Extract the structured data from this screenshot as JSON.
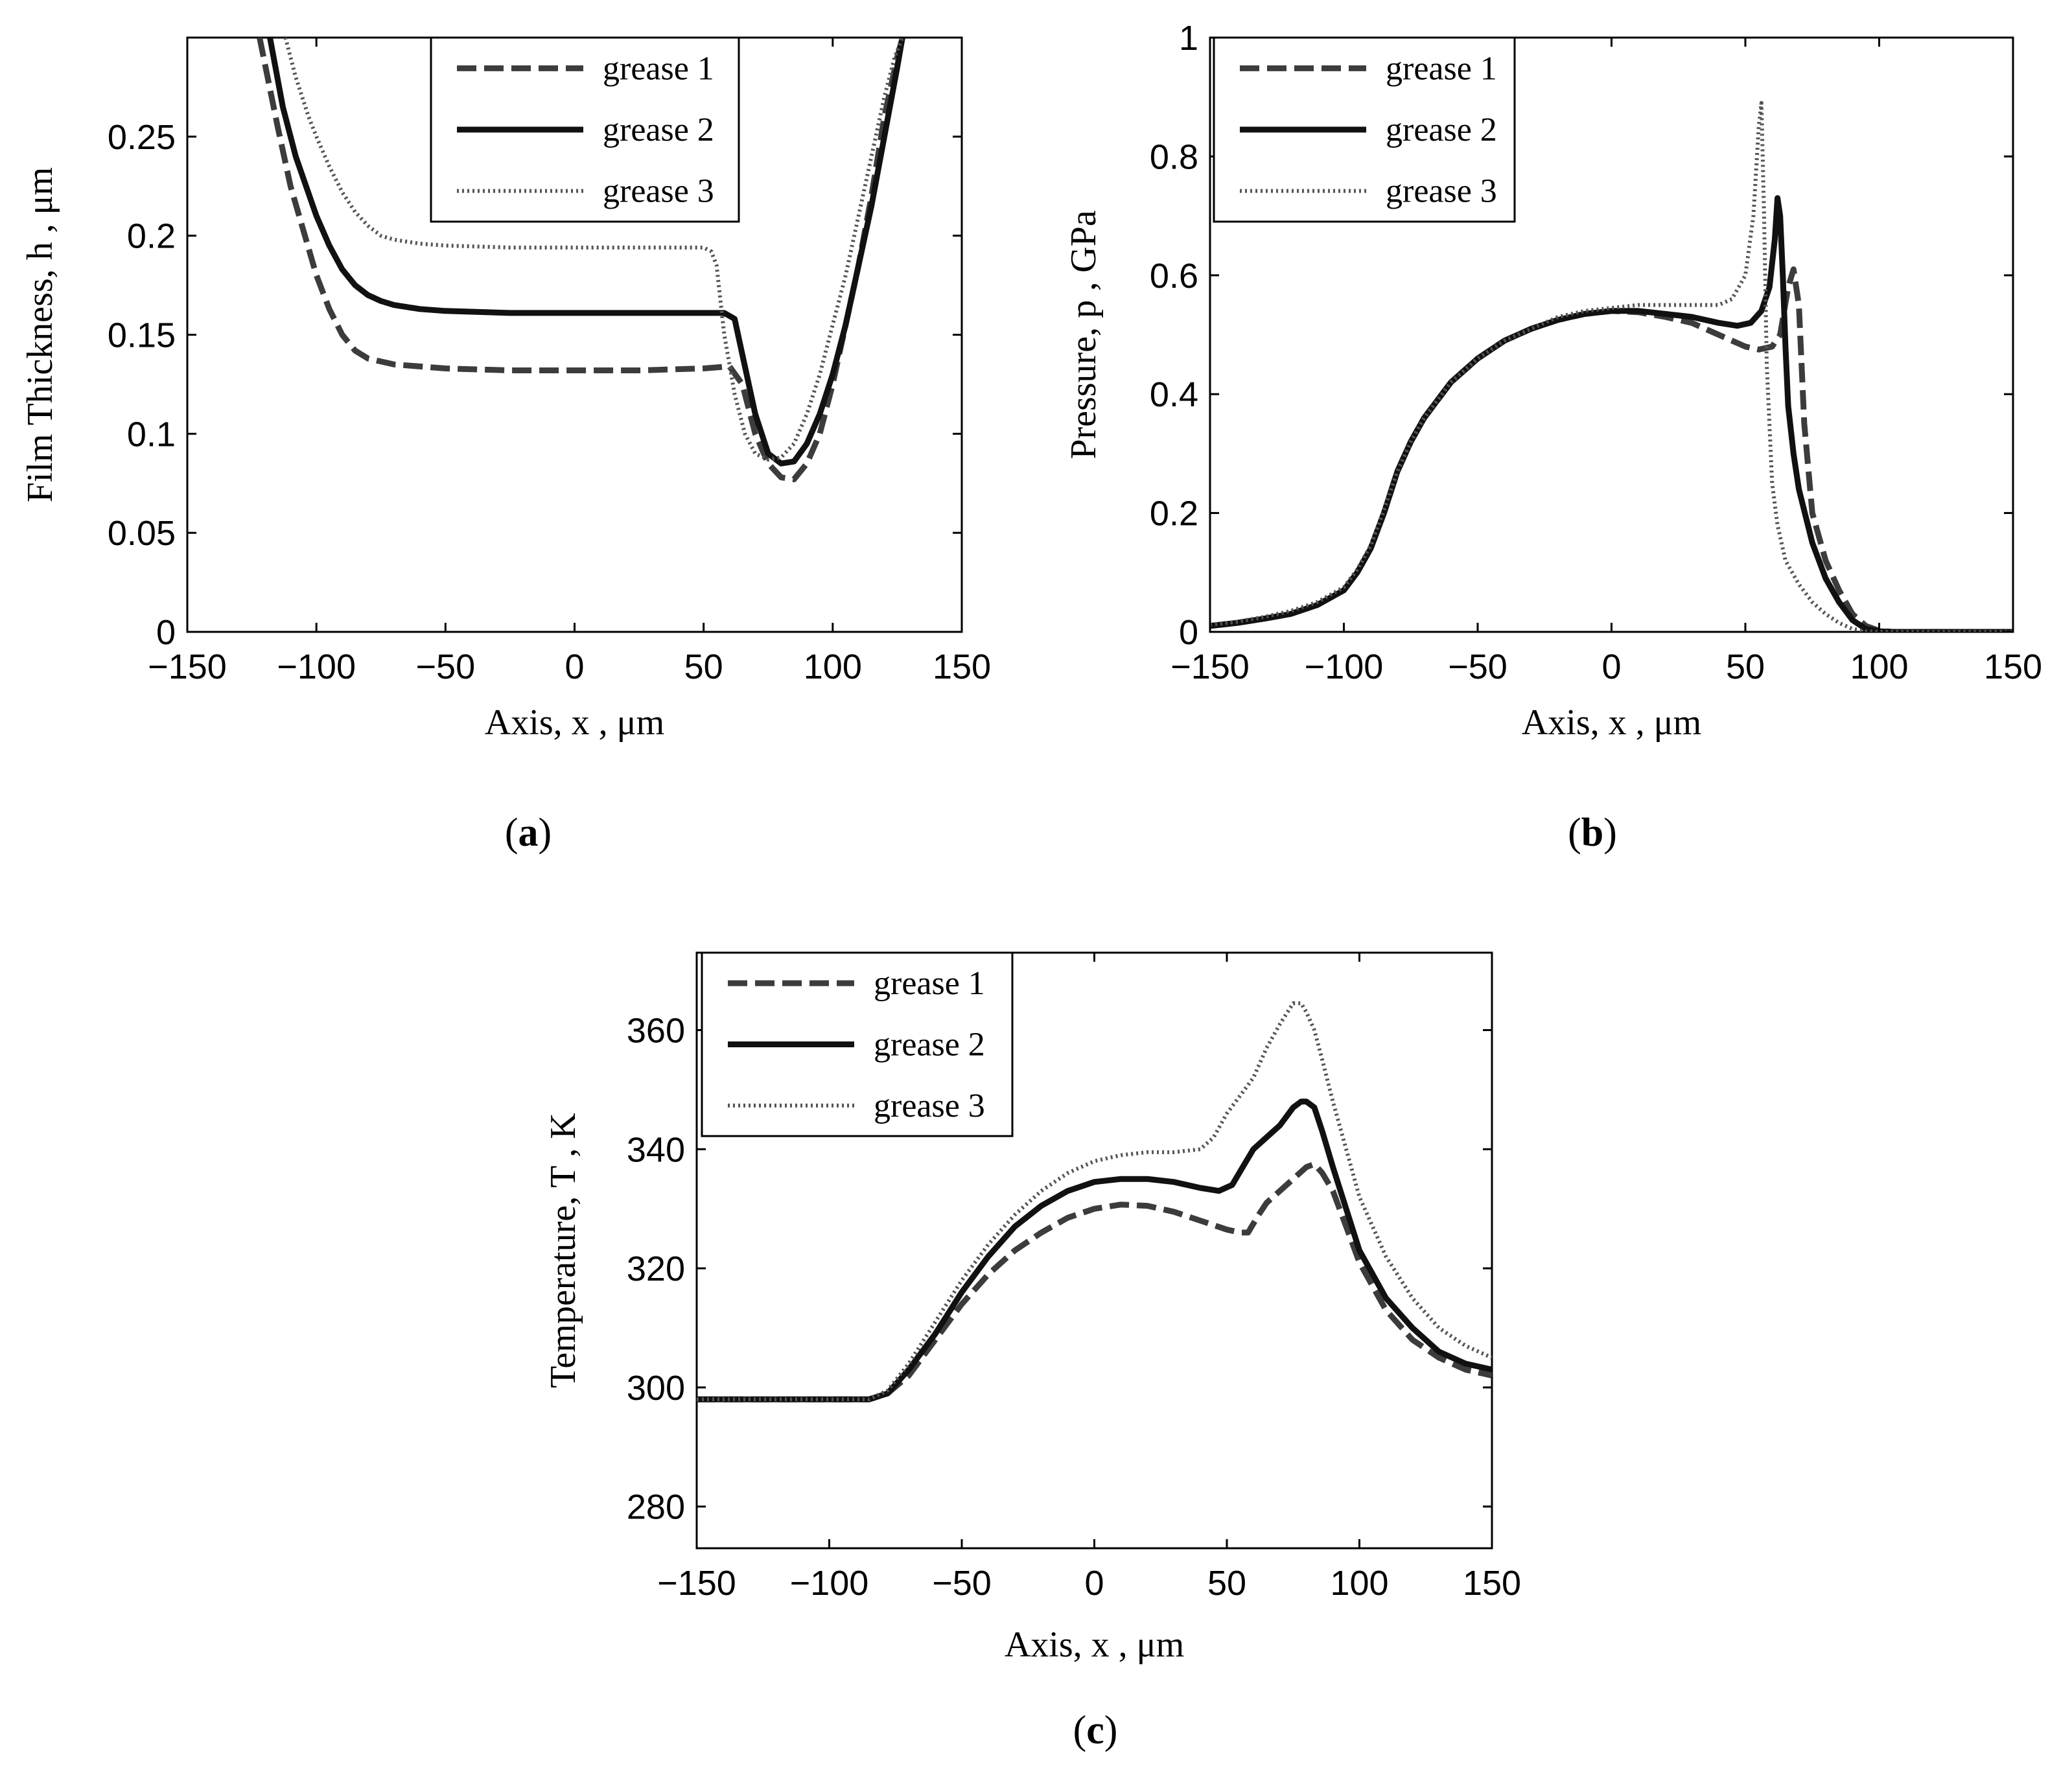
{
  "chart_data": [
    {
      "id": "a",
      "type": "line",
      "panel_label": "(a)",
      "panel_label_letter": "a",
      "xlabel": "Axis, x , μm",
      "ylabel": "Film Thickness, h , μm",
      "xlim": [
        -150,
        150
      ],
      "ylim": [
        0,
        0.3
      ],
      "xticks": [
        -150,
        -100,
        -50,
        0,
        50,
        100,
        150
      ],
      "xtick_labels": [
        "−150",
        "−100",
        "−50",
        "0",
        "50",
        "100",
        "150"
      ],
      "yticks": [
        0,
        0.05,
        0.1,
        0.15,
        0.2,
        0.25
      ],
      "ytick_labels": [
        "0",
        "0.05",
        "0.1",
        "0.15",
        "0.2",
        "0.25"
      ],
      "legend": [
        "grease 1",
        "grease 2",
        "grease 3"
      ],
      "legend_position": "top-center",
      "series": [
        {
          "name": "grease 1",
          "style": "dashed",
          "x": [
            -122,
            -115,
            -110,
            -100,
            -95,
            -90,
            -85,
            -80,
            -70,
            -60,
            -50,
            -25,
            0,
            25,
            50,
            60,
            65,
            70,
            75,
            80,
            85,
            90,
            95,
            100,
            105,
            110,
            115,
            120,
            125,
            127
          ],
          "y": [
            0.3,
            0.255,
            0.225,
            0.18,
            0.163,
            0.15,
            0.142,
            0.138,
            0.135,
            0.134,
            0.133,
            0.132,
            0.132,
            0.132,
            0.133,
            0.134,
            0.125,
            0.1,
            0.085,
            0.078,
            0.077,
            0.085,
            0.1,
            0.125,
            0.155,
            0.185,
            0.22,
            0.26,
            0.29,
            0.3
          ]
        },
        {
          "name": "grease 2",
          "style": "solid",
          "x": [
            -118,
            -113,
            -108,
            -100,
            -95,
            -90,
            -85,
            -80,
            -75,
            -70,
            -60,
            -50,
            -25,
            0,
            25,
            50,
            58,
            62,
            65,
            70,
            75,
            80,
            85,
            90,
            95,
            100,
            105,
            110,
            115,
            120,
            125,
            127
          ],
          "y": [
            0.3,
            0.265,
            0.24,
            0.21,
            0.195,
            0.183,
            0.175,
            0.17,
            0.167,
            0.165,
            0.163,
            0.162,
            0.161,
            0.161,
            0.161,
            0.161,
            0.161,
            0.158,
            0.14,
            0.11,
            0.09,
            0.085,
            0.086,
            0.095,
            0.11,
            0.13,
            0.155,
            0.185,
            0.215,
            0.25,
            0.285,
            0.3
          ]
        },
        {
          "name": "grease 3",
          "style": "dotted",
          "x": [
            -112,
            -108,
            -103,
            -100,
            -95,
            -90,
            -85,
            -80,
            -75,
            -70,
            -60,
            -50,
            -25,
            0,
            25,
            50,
            53,
            55,
            58,
            62,
            66,
            70,
            75,
            80,
            85,
            90,
            95,
            100,
            105,
            110,
            115,
            120,
            124,
            127
          ],
          "y": [
            0.3,
            0.28,
            0.26,
            0.25,
            0.235,
            0.222,
            0.212,
            0.205,
            0.2,
            0.198,
            0.196,
            0.195,
            0.194,
            0.194,
            0.194,
            0.194,
            0.192,
            0.185,
            0.15,
            0.12,
            0.1,
            0.09,
            0.087,
            0.088,
            0.095,
            0.11,
            0.13,
            0.155,
            0.18,
            0.21,
            0.24,
            0.27,
            0.29,
            0.3
          ]
        }
      ]
    },
    {
      "id": "b",
      "type": "line",
      "panel_label": "(b)",
      "panel_label_letter": "b",
      "xlabel": "Axis, x , μm",
      "ylabel": "Pressure, p , GPa",
      "xlim": [
        -150,
        150
      ],
      "ylim": [
        0,
        1
      ],
      "xticks": [
        -150,
        -100,
        -50,
        0,
        50,
        100,
        150
      ],
      "xtick_labels": [
        "−150",
        "−100",
        "−50",
        "0",
        "50",
        "100",
        "150"
      ],
      "yticks": [
        0,
        0.2,
        0.4,
        0.6,
        0.8,
        1
      ],
      "ytick_labels": [
        "0",
        "0.2",
        "0.4",
        "0.6",
        "0.8",
        "1"
      ],
      "legend": [
        "grease 1",
        "grease 2",
        "grease 3"
      ],
      "legend_position": "top-left",
      "series": [
        {
          "name": "grease 1",
          "style": "dashed",
          "x": [
            -150,
            -140,
            -130,
            -120,
            -110,
            -100,
            -95,
            -90,
            -85,
            -80,
            -75,
            -70,
            -60,
            -50,
            -40,
            -30,
            -20,
            -10,
            0,
            10,
            20,
            30,
            40,
            50,
            55,
            60,
            63,
            66,
            68,
            70,
            72,
            75,
            80,
            85,
            90,
            95,
            100,
            105,
            110,
            150
          ],
          "y": [
            0.01,
            0.015,
            0.022,
            0.03,
            0.045,
            0.07,
            0.1,
            0.14,
            0.2,
            0.27,
            0.32,
            0.36,
            0.42,
            0.46,
            0.49,
            0.51,
            0.525,
            0.535,
            0.54,
            0.538,
            0.53,
            0.52,
            0.5,
            0.48,
            0.475,
            0.48,
            0.5,
            0.58,
            0.61,
            0.55,
            0.35,
            0.2,
            0.12,
            0.07,
            0.03,
            0.01,
            0.002,
            0.0,
            0.0,
            0.0
          ]
        },
        {
          "name": "grease 2",
          "style": "solid",
          "x": [
            -150,
            -140,
            -130,
            -120,
            -110,
            -100,
            -95,
            -90,
            -85,
            -80,
            -75,
            -70,
            -60,
            -50,
            -40,
            -30,
            -20,
            -10,
            0,
            10,
            20,
            30,
            40,
            47,
            52,
            56,
            59,
            61,
            62,
            63,
            64,
            65,
            66,
            68,
            70,
            75,
            80,
            85,
            90,
            95,
            100,
            105,
            110,
            150
          ],
          "y": [
            0.01,
            0.015,
            0.022,
            0.03,
            0.045,
            0.07,
            0.1,
            0.14,
            0.2,
            0.27,
            0.32,
            0.36,
            0.42,
            0.46,
            0.49,
            0.51,
            0.525,
            0.535,
            0.54,
            0.54,
            0.535,
            0.53,
            0.52,
            0.515,
            0.52,
            0.54,
            0.58,
            0.66,
            0.73,
            0.7,
            0.6,
            0.48,
            0.38,
            0.3,
            0.24,
            0.15,
            0.09,
            0.05,
            0.02,
            0.005,
            0.001,
            0.0,
            0.0,
            0.0
          ]
        },
        {
          "name": "grease 3",
          "style": "dotted",
          "x": [
            -150,
            -140,
            -130,
            -120,
            -110,
            -100,
            -95,
            -90,
            -85,
            -80,
            -75,
            -70,
            -60,
            -50,
            -40,
            -30,
            -20,
            -10,
            0,
            10,
            20,
            30,
            40,
            45,
            50,
            53,
            55,
            56,
            57,
            58,
            60,
            62,
            65,
            70,
            75,
            80,
            85,
            90,
            95,
            100,
            150
          ],
          "y": [
            0.012,
            0.017,
            0.025,
            0.035,
            0.05,
            0.075,
            0.105,
            0.145,
            0.205,
            0.27,
            0.32,
            0.36,
            0.42,
            0.46,
            0.49,
            0.51,
            0.53,
            0.54,
            0.545,
            0.55,
            0.55,
            0.55,
            0.55,
            0.56,
            0.6,
            0.7,
            0.85,
            0.89,
            0.7,
            0.45,
            0.25,
            0.18,
            0.12,
            0.08,
            0.05,
            0.03,
            0.015,
            0.005,
            0.001,
            0.0,
            0.0
          ]
        }
      ]
    },
    {
      "id": "c",
      "type": "line",
      "panel_label": "(c)",
      "panel_label_letter": "c",
      "xlabel": "Axis, x , μm",
      "ylabel": "Temperature,  T , K",
      "xlim": [
        -150,
        150
      ],
      "ylim": [
        273,
        373
      ],
      "xticks": [
        -150,
        -100,
        -50,
        0,
        50,
        100,
        150
      ],
      "xtick_labels": [
        "−150",
        "−100",
        "−50",
        "0",
        "50",
        "100",
        "150"
      ],
      "yticks": [
        280,
        300,
        320,
        340,
        360
      ],
      "ytick_labels": [
        "280",
        "300",
        "320",
        "340",
        "360"
      ],
      "legend": [
        "grease 1",
        "grease 2",
        "grease 3"
      ],
      "legend_position": "top-left",
      "series": [
        {
          "name": "grease 1",
          "style": "dashed",
          "x": [
            -150,
            -100,
            -85,
            -78,
            -70,
            -60,
            -50,
            -40,
            -30,
            -20,
            -10,
            0,
            10,
            20,
            30,
            40,
            50,
            55,
            58,
            62,
            65,
            70,
            75,
            80,
            83,
            86,
            90,
            95,
            100,
            110,
            120,
            130,
            140,
            150
          ],
          "y": [
            298,
            298,
            298,
            299,
            302,
            308,
            314,
            319,
            323,
            326,
            328.5,
            330,
            330.7,
            330.5,
            329.5,
            328,
            326.5,
            326,
            326,
            329,
            331,
            333,
            335,
            337,
            337.5,
            336,
            333,
            327,
            321,
            313,
            308,
            305,
            303,
            302
          ]
        },
        {
          "name": "grease 2",
          "style": "solid",
          "x": [
            -150,
            -100,
            -85,
            -78,
            -70,
            -60,
            -50,
            -40,
            -30,
            -20,
            -10,
            0,
            10,
            20,
            30,
            40,
            47,
            52,
            56,
            60,
            65,
            70,
            75,
            78,
            80,
            83,
            86,
            90,
            95,
            100,
            110,
            120,
            130,
            140,
            150
          ],
          "y": [
            298,
            298,
            298,
            299,
            303,
            309,
            316,
            322,
            327,
            330.5,
            333,
            334.5,
            335,
            335,
            334.5,
            333.5,
            333,
            334,
            337,
            340,
            342,
            344,
            347,
            348,
            348,
            347,
            343,
            337,
            330,
            323,
            315,
            310,
            306,
            304,
            303
          ]
        },
        {
          "name": "grease 3",
          "style": "dotted",
          "x": [
            -150,
            -100,
            -85,
            -78,
            -70,
            -60,
            -50,
            -40,
            -30,
            -20,
            -10,
            0,
            10,
            20,
            30,
            40,
            45,
            50,
            55,
            60,
            65,
            70,
            75,
            78,
            80,
            83,
            86,
            90,
            95,
            100,
            110,
            120,
            130,
            140,
            150
          ],
          "y": [
            298,
            298,
            298,
            299.5,
            304,
            311,
            318,
            324,
            329,
            333,
            336,
            338,
            339,
            339.5,
            339.5,
            340,
            342,
            346,
            349,
            352,
            357,
            361,
            364.5,
            364.5,
            363,
            360,
            355,
            348,
            340,
            332,
            322,
            315,
            310,
            307,
            305
          ]
        }
      ]
    }
  ]
}
